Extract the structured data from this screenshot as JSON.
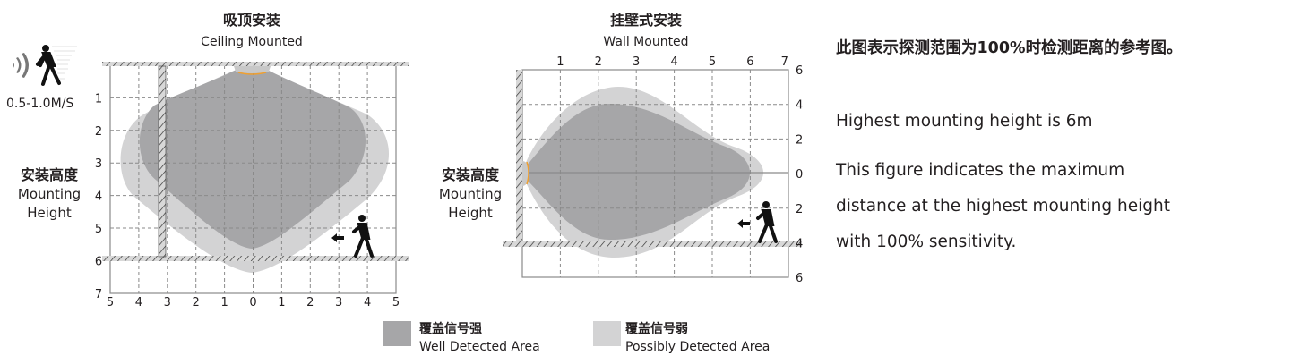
{
  "ceiling": {
    "title_cn": "吸顶安装",
    "title_en": "Ceiling Mounted",
    "speed": "0.5-1.0M/S",
    "height_cn": "安装高度",
    "height_en_1": "Mounting",
    "height_en_2": "Height",
    "y_ticks": [
      "1",
      "2",
      "3",
      "4",
      "5",
      "6",
      "7"
    ],
    "x_ticks": [
      "5",
      "4",
      "3",
      "2",
      "1",
      "0",
      "1",
      "2",
      "3",
      "4",
      "5"
    ]
  },
  "wall": {
    "title_cn": "挂壁式安装",
    "title_en": "Wall Mounted",
    "height_cn": "安装高度",
    "height_en_1": "Mounting",
    "height_en_2": "Height",
    "x_ticks": [
      "1",
      "2",
      "3",
      "4",
      "5",
      "6",
      "7"
    ],
    "y_ticks": [
      "6",
      "4",
      "2",
      "0",
      "2",
      "4",
      "6"
    ]
  },
  "legend": {
    "well_cn": "覆盖信号强",
    "well_en": "Well Detected Area",
    "possibly_cn": "覆盖信号弱",
    "possibly_en": "Possibly Detected Area"
  },
  "notes": {
    "line1": "此图表示探测范围为100%时检测距离的参考图。",
    "line2": "Highest mounting height is 6m",
    "line3": "This figure indicates the maximum",
    "line4": "distance at the highest mounting height",
    "line5": "with 100% sensitivity."
  },
  "colors": {
    "well_detected": "#a6a6a8",
    "possibly_detected": "#d3d3d4",
    "sensor_accent": "#f0a030",
    "grid": "#8a8a8a"
  },
  "icons": [
    "motion-sensor-icon",
    "walking-person-icon",
    "arrow-left-icon"
  ]
}
